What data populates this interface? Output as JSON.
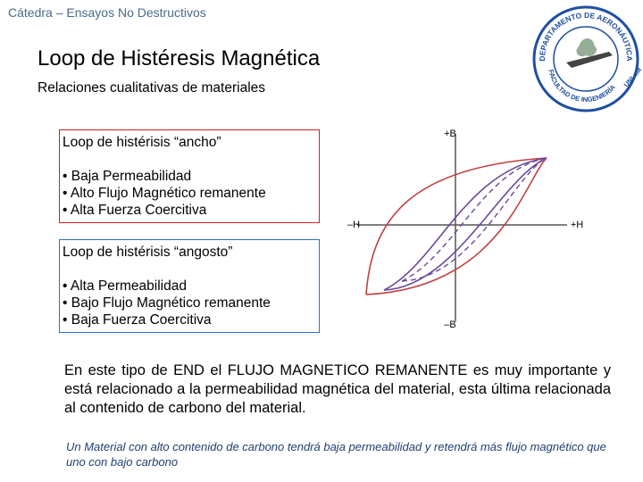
{
  "header": {
    "course": "Cátedra – Ensayos No Destructivos",
    "title": "Loop de Histéresis Magnética",
    "subtitle": "Relaciones cualitativas de materiales"
  },
  "logo": {
    "top": "DEPARTAMENTO DE AERONÁUTICA",
    "bottom": "FACULTAD DE INGENIERÍA",
    "side": "UNLaM"
  },
  "boxes": [
    {
      "title": "Loop de histérisis “ancho”",
      "items": [
        "• Baja Permeabilidad",
        "• Alto Flujo Magnético remanente",
        "• Alta Fuerza Coercitiva"
      ]
    },
    {
      "title": "Loop de histérisis “angosto”",
      "items": [
        "• Alta Permeabilidad",
        "• Bajo Flujo Magnético remanente",
        "• Baja Fuerza Coercitiva"
      ]
    }
  ],
  "diagram": {
    "labels": {
      "plus_b": "+B",
      "minus_b": "–B",
      "minus_h": "–H",
      "plus_h": "+H"
    }
  },
  "body": {
    "paragraph": "En este tipo de END el FLUJO MAGNETICO REMANENTE es muy importante y está relacionado a la permeabilidad magnética del material, esta última relacionada al contenido de carbono del material.",
    "note": "Un Material con alto contenido de carbono tendrá baja permeabilidad y retendrá más flujo magnético que uno con bajo carbono"
  }
}
